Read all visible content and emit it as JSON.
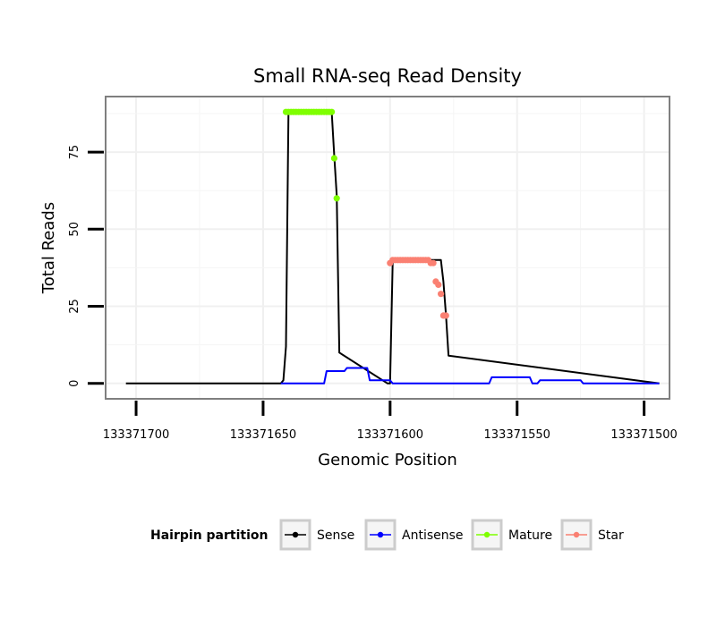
{
  "chart_data": {
    "type": "line",
    "title": "Small RNA-seq Read Density",
    "xlabel": "Genomic Position",
    "ylabel": "Total Reads",
    "x_reversed": true,
    "xlim": [
      133371712,
      133371490
    ],
    "ylim": [
      -5,
      93
    ],
    "x_ticks": [
      133371700,
      133371650,
      133371600,
      133371550,
      133371500
    ],
    "x_tick_labels": [
      "133371700",
      "133371650",
      133371600,
      "133371550",
      "133371500"
    ],
    "y_ticks": [
      0,
      25,
      50,
      75
    ],
    "y_tick_labels": [
      "0",
      "25",
      "50",
      "75"
    ],
    "legend": {
      "title": "Hairpin partition",
      "position": "bottom",
      "entries": [
        {
          "label": "Sense",
          "color": "#000000"
        },
        {
          "label": "Antisense",
          "color": "#0000ff"
        },
        {
          "label": "Mature",
          "color": "#7fff00"
        },
        {
          "label": "Star",
          "color": "#fa8072"
        }
      ]
    },
    "series": [
      {
        "name": "Sense",
        "color": "#000000",
        "x": [
          133371704,
          133371643,
          133371642,
          133371641,
          133371640,
          133371623,
          133371622,
          133371621,
          133371620,
          133371601,
          133371600,
          133371599,
          133371598,
          133371580,
          133371579,
          133371578,
          133371577,
          133371494
        ],
        "y": [
          0,
          0,
          1,
          12,
          88,
          88,
          74,
          61,
          10,
          0,
          0,
          39,
          40,
          40,
          33,
          22,
          9,
          0
        ]
      },
      {
        "name": "Antisense",
        "color": "#0000ff",
        "x": [
          133371643,
          133371626,
          133371625,
          133371618,
          133371617,
          133371609,
          133371608,
          133371600,
          133371599,
          133371561,
          133371560,
          133371545,
          133371544,
          133371542,
          133371541,
          133371525,
          133371524,
          133371494
        ],
        "y": [
          0,
          0,
          4,
          4,
          5,
          5,
          1,
          1,
          0,
          0,
          2,
          2,
          0,
          0,
          1,
          1,
          0,
          0
        ]
      },
      {
        "name": "Mature",
        "color": "#7fff00",
        "markers_only": true,
        "x": [
          133371641,
          133371640,
          133371639,
          133371638,
          133371637,
          133371636,
          133371635,
          133371634,
          133371633,
          133371632,
          133371631,
          133371630,
          133371629,
          133371628,
          133371627,
          133371626,
          133371625,
          133371624,
          133371623,
          133371622,
          133371621
        ],
        "y": [
          88,
          88,
          88,
          88,
          88,
          88,
          88,
          88,
          88,
          88,
          88,
          88,
          88,
          88,
          88,
          88,
          88,
          88,
          88,
          73,
          60
        ]
      },
      {
        "name": "Star",
        "color": "#fa8072",
        "markers_only": true,
        "x": [
          133371600,
          133371599,
          133371598,
          133371597,
          133371596,
          133371595,
          133371594,
          133371593,
          133371592,
          133371591,
          133371590,
          133371589,
          133371588,
          133371587,
          133371586,
          133371585,
          133371584,
          133371583,
          133371582,
          133371581,
          133371580,
          133371579,
          133371578
        ],
        "y": [
          39,
          40,
          40,
          40,
          40,
          40,
          40,
          40,
          40,
          40,
          40,
          40,
          40,
          40,
          40,
          40,
          39,
          39,
          33,
          32,
          29,
          22,
          22
        ]
      }
    ]
  }
}
